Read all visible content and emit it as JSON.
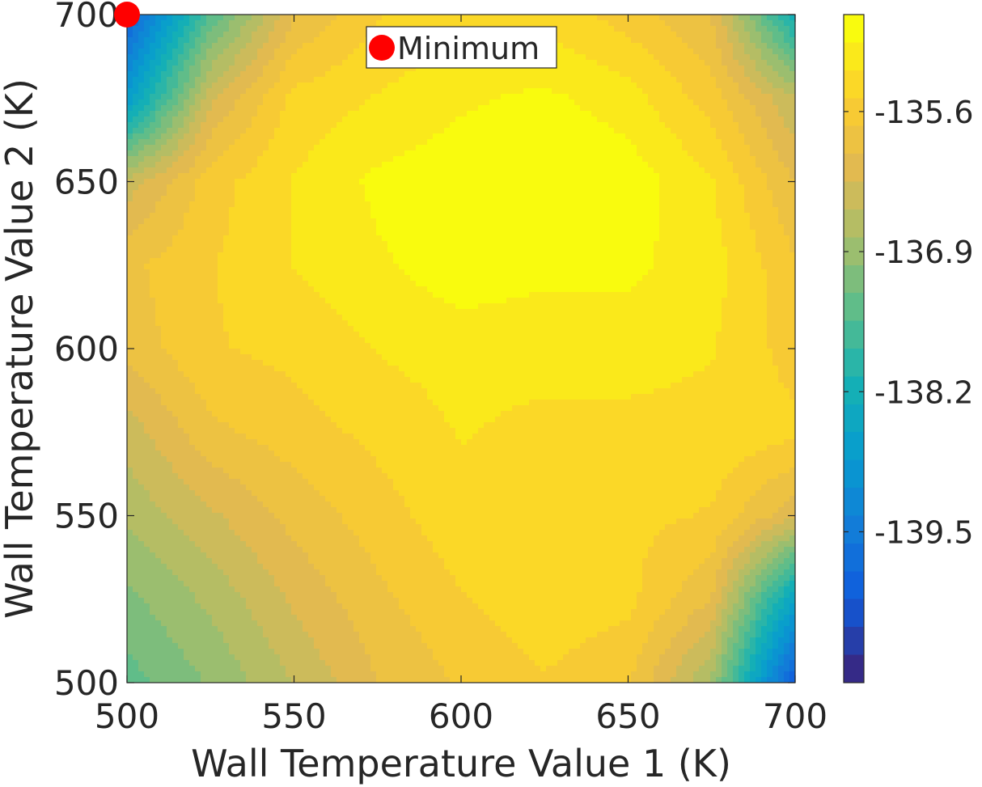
{
  "chart_data": {
    "type": "contour",
    "xlabel": "Wall Temperature Value 1 (K)",
    "ylabel": "Wall Temperature Value 2 (K)",
    "xlim": [
      500,
      700
    ],
    "ylim": [
      500,
      700
    ],
    "xticks": [
      "500",
      "550",
      "600",
      "650",
      "700"
    ],
    "yticks": [
      "500",
      "550",
      "600",
      "650",
      "700"
    ],
    "colorbar": {
      "colormap": "parula",
      "range": [
        -140.9,
        -134.7
      ],
      "ticks": [
        "-135.6",
        "-136.9",
        "-138.2",
        "-139.5"
      ],
      "tick_values": [
        -135.6,
        -136.9,
        -138.2,
        -139.5
      ]
    },
    "grid": {
      "x": [
        500,
        525,
        550,
        575,
        600,
        625,
        650,
        675,
        700
      ],
      "y": [
        500,
        525,
        550,
        575,
        600,
        625,
        650,
        675,
        700
      ],
      "z": [
        [
          -137.4,
          -137.0,
          -136.5,
          -136.0,
          -135.7,
          -135.5,
          -135.7,
          -136.8,
          -140.2
        ],
        [
          -137.1,
          -136.7,
          -136.2,
          -135.8,
          -135.5,
          -135.3,
          -135.4,
          -136.0,
          -138.6
        ],
        [
          -136.7,
          -136.3,
          -135.9,
          -135.6,
          -135.3,
          -135.3,
          -135.4,
          -135.5,
          -136.2
        ],
        [
          -136.4,
          -135.8,
          -135.6,
          -135.4,
          -135.2,
          -135.3,
          -135.3,
          -135.3,
          -135.4
        ],
        [
          -135.9,
          -135.5,
          -135.4,
          -135.2,
          -135.1,
          -135.1,
          -135.1,
          -135.2,
          -135.6
        ],
        [
          -135.8,
          -135.5,
          -135.2,
          -135.0,
          -134.8,
          -134.9,
          -134.9,
          -135.1,
          -135.7
        ],
        [
          -136.4,
          -135.6,
          -135.2,
          -134.9,
          -134.8,
          -134.7,
          -134.8,
          -135.2,
          -136.0
        ],
        [
          -138.8,
          -136.3,
          -135.4,
          -135.2,
          -135.0,
          -134.9,
          -135.1,
          -135.6,
          -136.5
        ],
        [
          -140.0,
          -137.5,
          -136.0,
          -135.5,
          -135.3,
          -135.3,
          -135.6,
          -136.0,
          -138.3
        ]
      ]
    },
    "minimum_marker": {
      "x": 500,
      "y": 700,
      "color": "#ff0000"
    },
    "legend": {
      "entries": [
        "Minimum"
      ],
      "placement": "top-center"
    }
  }
}
